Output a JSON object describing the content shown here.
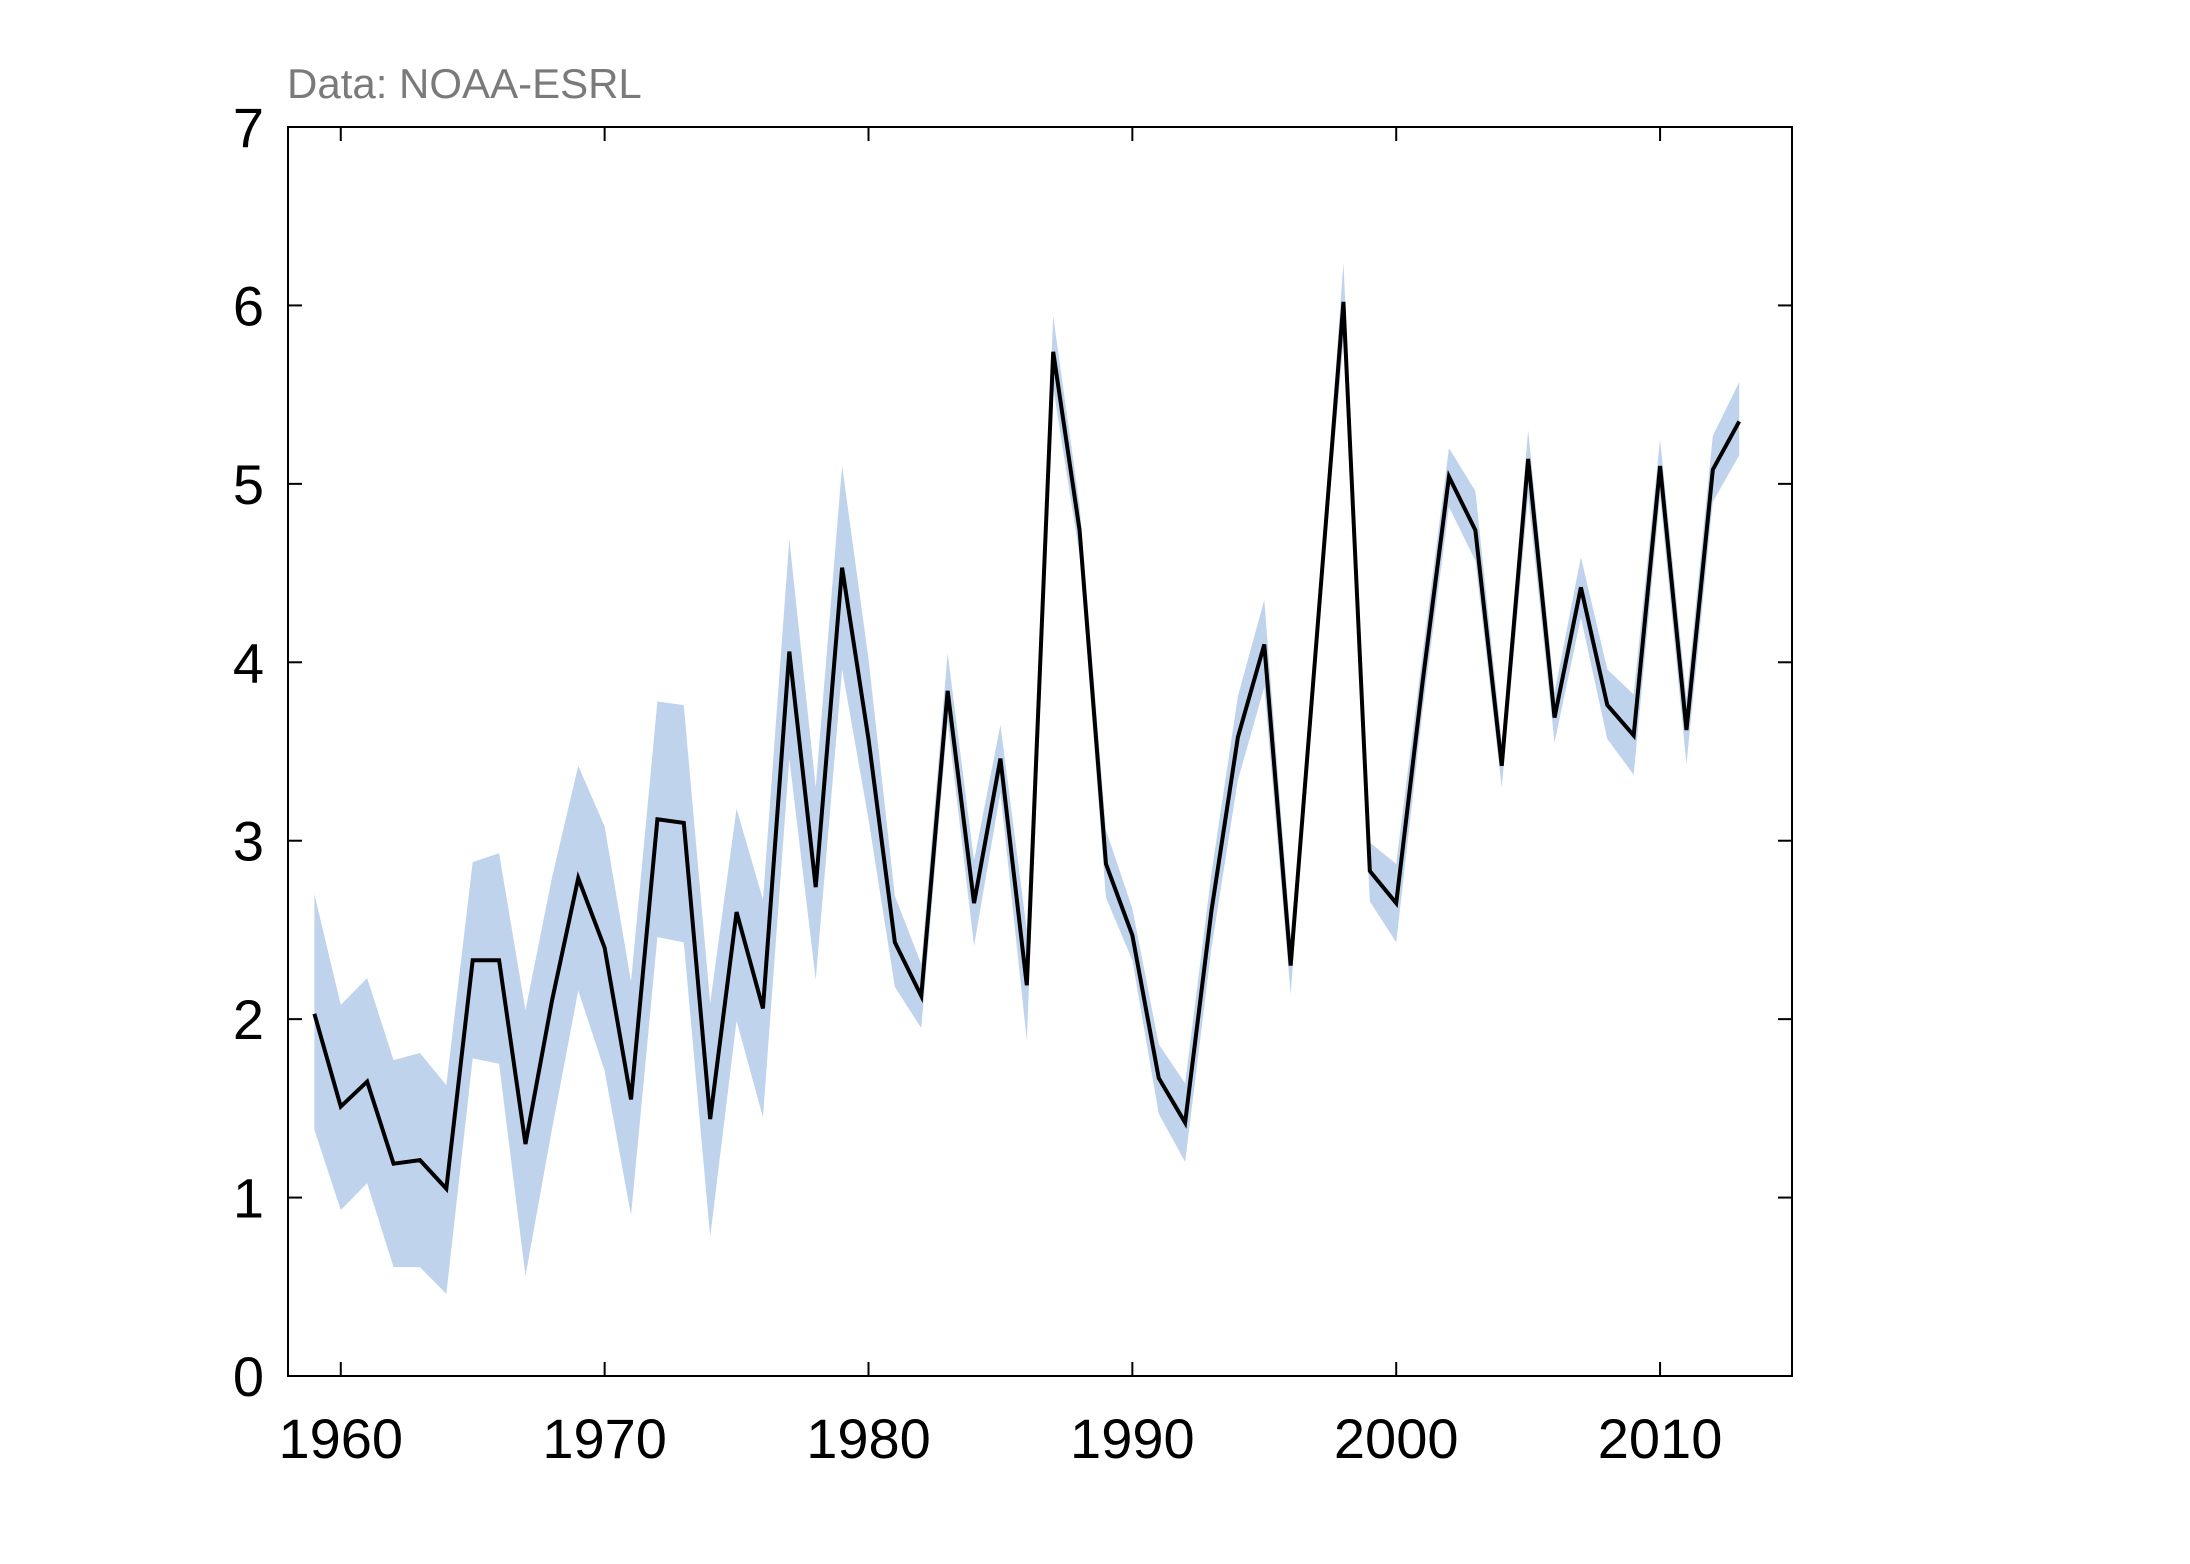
{
  "chart_data": {
    "type": "line",
    "source": "Data: NOAA-ESRL",
    "title": "",
    "xlabel": "",
    "ylabel": "",
    "xlim": [
      1958,
      2015
    ],
    "ylim": [
      0,
      7
    ],
    "x_ticks": [
      1960,
      1970,
      1980,
      1990,
      2000,
      2010
    ],
    "y_ticks": [
      0,
      1,
      2,
      3,
      4,
      5,
      6,
      7
    ],
    "grid": false,
    "legend": "none",
    "line_color": "#000000",
    "band_color": "#c0d3ec",
    "series": [
      {
        "x": [
          1959,
          1960,
          1961,
          1962,
          1963,
          1964,
          1965,
          1966,
          1967,
          1968,
          1969,
          1970,
          1971,
          1972,
          1973,
          1974,
          1975,
          1976,
          1977,
          1978,
          1979,
          1980,
          1981,
          1982,
          1983,
          1984,
          1985,
          1986,
          1987,
          1988,
          1989,
          1990,
          1991,
          1992,
          1993,
          1994,
          1995,
          1996,
          1997,
          1998,
          1999,
          2000,
          2001,
          2002,
          2003,
          2004,
          2005,
          2006,
          2007,
          2008,
          2009,
          2010,
          2011,
          2012,
          2013
        ],
        "values": [
          2.03,
          1.51,
          1.65,
          1.19,
          1.21,
          1.05,
          2.33,
          2.33,
          1.3,
          2.1,
          2.79,
          2.4,
          1.55,
          3.12,
          3.1,
          1.44,
          2.6,
          2.06,
          4.06,
          2.74,
          4.53,
          3.57,
          2.43,
          2.13,
          3.84,
          2.65,
          3.46,
          2.19,
          5.74,
          4.74,
          2.87,
          2.47,
          1.67,
          1.42,
          2.61,
          3.58,
          4.1,
          2.3,
          4.16,
          6.02,
          2.83,
          2.65,
          3.89,
          5.04,
          4.74,
          3.42,
          5.14,
          3.69,
          4.42,
          3.76,
          3.59,
          5.1,
          3.62,
          5.08,
          5.35
        ],
        "lower": [
          1.38,
          0.93,
          1.08,
          0.61,
          0.61,
          0.46,
          1.78,
          1.75,
          0.56,
          1.38,
          2.16,
          1.71,
          0.9,
          2.46,
          2.43,
          0.78,
          1.99,
          1.45,
          3.46,
          2.22,
          3.96,
          3.12,
          2.18,
          1.95,
          3.67,
          2.41,
          3.27,
          1.88,
          5.54,
          4.6,
          2.68,
          2.33,
          1.47,
          1.2,
          2.4,
          3.34,
          3.86,
          2.14,
          4.12,
          5.8,
          2.66,
          2.43,
          3.73,
          4.87,
          4.57,
          3.3,
          4.93,
          3.55,
          4.25,
          3.57,
          3.37,
          4.93,
          3.43,
          4.9,
          5.16
        ],
        "upper": [
          2.7,
          2.08,
          2.23,
          1.77,
          1.81,
          1.63,
          2.88,
          2.93,
          2.05,
          2.79,
          3.42,
          3.08,
          2.21,
          3.78,
          3.76,
          2.09,
          3.18,
          2.67,
          4.69,
          3.3,
          5.1,
          4.02,
          2.69,
          2.31,
          4.05,
          2.89,
          3.65,
          2.5,
          5.94,
          4.88,
          3.06,
          2.62,
          1.86,
          1.64,
          2.82,
          3.81,
          4.35,
          2.46,
          4.2,
          6.24,
          2.99,
          2.87,
          4.05,
          5.2,
          4.96,
          3.55,
          5.3,
          3.83,
          4.59,
          3.96,
          3.82,
          5.25,
          3.8,
          5.27,
          5.57
        ]
      }
    ]
  }
}
